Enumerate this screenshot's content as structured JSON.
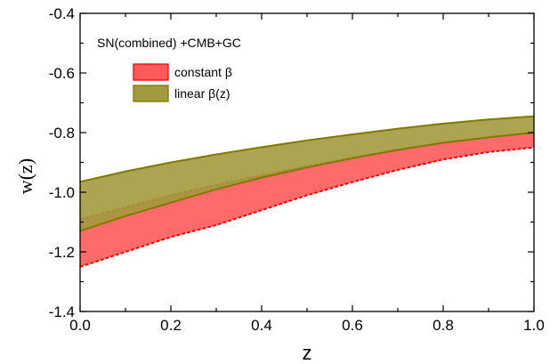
{
  "chart_data": {
    "type": "area",
    "title": "",
    "xlabel": "z",
    "ylabel": "w(z)",
    "xlim": [
      0.0,
      1.0
    ],
    "ylim": [
      -1.4,
      -0.4
    ],
    "xticks": [
      "0.0",
      "0.2",
      "0.4",
      "0.6",
      "0.8",
      "1.0"
    ],
    "yticks": [
      "-1.4",
      "-1.2",
      "-1.0",
      "-0.8",
      "-0.6",
      "-0.4"
    ],
    "x_minor_step": 0.1,
    "y_minor_step": 0.1,
    "annotation": "SN(combined) +CMB+GC",
    "legend_placement": "top-left",
    "grid": false,
    "x": [
      0.0,
      0.1,
      0.2,
      0.3,
      0.4,
      0.5,
      0.6,
      0.7,
      0.8,
      0.9,
      1.0
    ],
    "series": [
      {
        "name": "constant β",
        "fill_color": "#ff5a5a",
        "edge_color": "#ff0000",
        "edge_style": "dashed",
        "upper": [
          -1.09,
          -1.05,
          -1.01,
          -0.975,
          -0.943,
          -0.912,
          -0.884,
          -0.858,
          -0.834,
          -0.815,
          -0.8
        ],
        "lower": [
          -1.25,
          -1.2,
          -1.15,
          -1.11,
          -1.06,
          -1.01,
          -0.966,
          -0.925,
          -0.89,
          -0.865,
          -0.85
        ]
      },
      {
        "name": "linear β(z)",
        "fill_color": "#a29a3e",
        "edge_color": "#807a00",
        "edge_style": "solid",
        "upper": [
          -0.965,
          -0.93,
          -0.9,
          -0.873,
          -0.849,
          -0.826,
          -0.806,
          -0.787,
          -0.77,
          -0.756,
          -0.745
        ],
        "lower": [
          -1.13,
          -1.08,
          -1.035,
          -0.99,
          -0.951,
          -0.917,
          -0.886,
          -0.858,
          -0.834,
          -0.816,
          -0.8
        ]
      }
    ]
  }
}
